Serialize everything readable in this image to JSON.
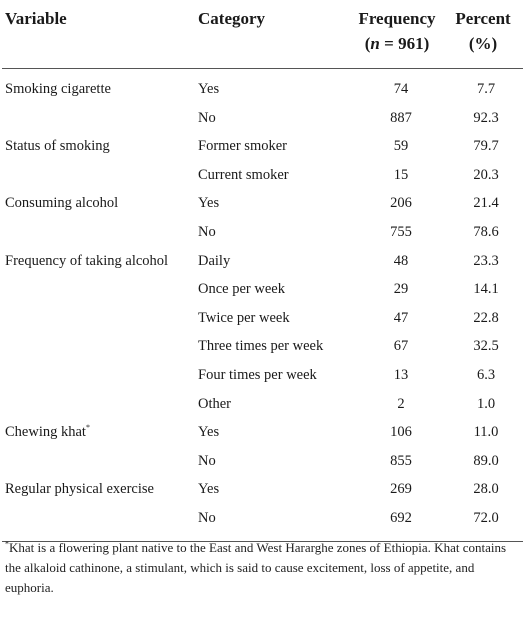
{
  "headers": {
    "variable": "Variable",
    "category": "Category",
    "frequency": "Frequency",
    "frequency_sub_n": "n",
    "frequency_sub_rest": " = 961)",
    "frequency_sub_open": "(",
    "percent": "Percent",
    "percent_sub": "(%)"
  },
  "rows": [
    {
      "variable": "Smoking cigarette",
      "category": "Yes",
      "frequency": "74",
      "percent": "7.7"
    },
    {
      "variable": "",
      "category": "No",
      "frequency": "887",
      "percent": "92.3"
    },
    {
      "variable": "Status of smoking",
      "category": "Former smoker",
      "frequency": "59",
      "percent": "79.7"
    },
    {
      "variable": "",
      "category": "Current smoker",
      "frequency": "15",
      "percent": "20.3"
    },
    {
      "variable": "Consuming alcohol",
      "category": "Yes",
      "frequency": "206",
      "percent": "21.4"
    },
    {
      "variable": "",
      "category": "No",
      "frequency": "755",
      "percent": "78.6"
    },
    {
      "variable": "Frequency of taking alcohol",
      "category": "Daily",
      "frequency": "48",
      "percent": "23.3"
    },
    {
      "variable": "",
      "category": "Once per week",
      "frequency": "29",
      "percent": "14.1"
    },
    {
      "variable": "",
      "category": "Twice per week",
      "frequency": "47",
      "percent": "22.8"
    },
    {
      "variable": "",
      "category": "Three times per week",
      "frequency": "67",
      "percent": "32.5"
    },
    {
      "variable": "",
      "category": "Four times per week",
      "frequency": "13",
      "percent": "6.3"
    },
    {
      "variable": "",
      "category": "Other",
      "frequency": "2",
      "percent": "1.0"
    },
    {
      "variable": "Chewing khat",
      "variable_sup": "*",
      "category": "Yes",
      "frequency": "106",
      "percent": "11.0"
    },
    {
      "variable": "",
      "category": "No",
      "frequency": "855",
      "percent": "89.0"
    },
    {
      "variable": "Regular physical exercise",
      "category": "Yes",
      "frequency": "269",
      "percent": "28.0"
    },
    {
      "variable": "",
      "category": "No",
      "frequency": "692",
      "percent": "72.0"
    }
  ],
  "footnote": {
    "marker": "*",
    "text": "Khat is a flowering plant native to the East and West Hararghe zones of Ethiopia. Khat contains the alkaloid cathinone, a stimulant, which is said to cause excitement, loss of appetite, and euphoria."
  }
}
